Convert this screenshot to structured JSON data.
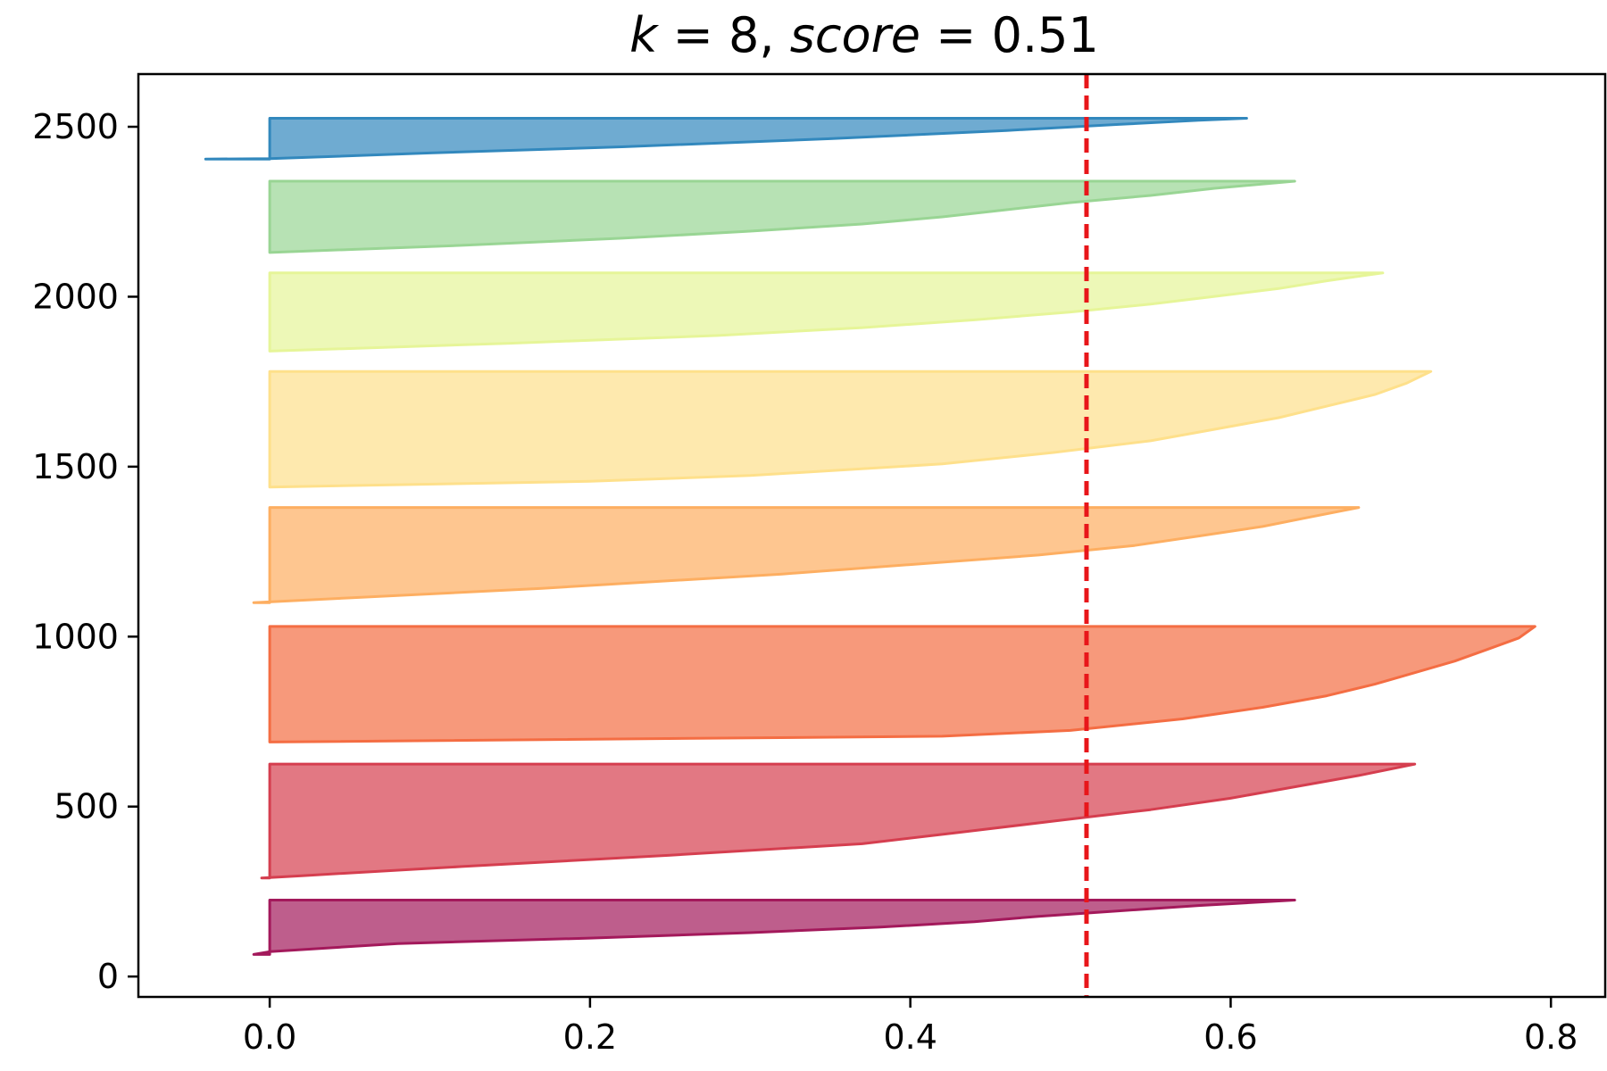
{
  "chart_data": {
    "type": "area",
    "title": {
      "parts": [
        {
          "text": "k",
          "italic": true
        },
        {
          "text": " = 8, ",
          "italic": false
        },
        {
          "text": "score",
          "italic": true
        },
        {
          "text": " = 0.51",
          "italic": false
        }
      ]
    },
    "xlabel": "",
    "ylabel": "",
    "xlim": [
      -0.082,
      0.835
    ],
    "ylim": [
      -60,
      2655
    ],
    "x_ticks": [
      0.0,
      0.2,
      0.4,
      0.6,
      0.8
    ],
    "x_tick_labels": [
      "0.0",
      "0.2",
      "0.4",
      "0.6",
      "0.8"
    ],
    "y_ticks": [
      0,
      500,
      1000,
      1500,
      2000,
      2500
    ],
    "y_tick_labels": [
      "0",
      "500",
      "1000",
      "1500",
      "2000",
      "2500"
    ],
    "grid": false,
    "legend": "none",
    "score_line": {
      "x": 0.51,
      "color": "#e8161a",
      "style": "dashed"
    },
    "clusters": [
      {
        "color": "#a3195b",
        "y_start": 65,
        "y_end": 225,
        "profile": [
          [
            0,
            -0.01
          ],
          [
            0.05,
            0.0
          ],
          [
            0.2,
            0.08
          ],
          [
            0.3,
            0.2
          ],
          [
            0.4,
            0.3
          ],
          [
            0.5,
            0.38
          ],
          [
            0.6,
            0.44
          ],
          [
            0.7,
            0.48
          ],
          [
            0.8,
            0.53
          ],
          [
            0.9,
            0.58
          ],
          [
            1,
            0.64
          ]
        ]
      },
      {
        "color": "#d53e4f",
        "y_start": 290,
        "y_end": 625,
        "profile": [
          [
            0,
            -0.005
          ],
          [
            0.02,
            0.02
          ],
          [
            0.1,
            0.12
          ],
          [
            0.2,
            0.25
          ],
          [
            0.3,
            0.37
          ],
          [
            0.4,
            0.43
          ],
          [
            0.5,
            0.49
          ],
          [
            0.6,
            0.55
          ],
          [
            0.7,
            0.6
          ],
          [
            0.8,
            0.64
          ],
          [
            0.9,
            0.68
          ],
          [
            1,
            0.715
          ]
        ]
      },
      {
        "color": "#f46d43",
        "y_start": 690,
        "y_end": 1030,
        "profile": [
          [
            0,
            0.0
          ],
          [
            0.05,
            0.42
          ],
          [
            0.1,
            0.5
          ],
          [
            0.2,
            0.57
          ],
          [
            0.3,
            0.62
          ],
          [
            0.4,
            0.66
          ],
          [
            0.5,
            0.69
          ],
          [
            0.6,
            0.715
          ],
          [
            0.7,
            0.74
          ],
          [
            0.8,
            0.76
          ],
          [
            0.9,
            0.78
          ],
          [
            1,
            0.79
          ]
        ]
      },
      {
        "color": "#fdae61",
        "y_start": 1100,
        "y_end": 1380,
        "profile": [
          [
            0,
            -0.01
          ],
          [
            0.05,
            0.05
          ],
          [
            0.15,
            0.17
          ],
          [
            0.3,
            0.32
          ],
          [
            0.5,
            0.48
          ],
          [
            0.6,
            0.54
          ],
          [
            0.7,
            0.58
          ],
          [
            0.8,
            0.62
          ],
          [
            0.9,
            0.65
          ],
          [
            1,
            0.68
          ]
        ]
      },
      {
        "color": "#fee08b",
        "y_start": 1440,
        "y_end": 1780,
        "profile": [
          [
            0,
            0.0
          ],
          [
            0.05,
            0.2
          ],
          [
            0.1,
            0.3
          ],
          [
            0.2,
            0.42
          ],
          [
            0.3,
            0.49
          ],
          [
            0.4,
            0.55
          ],
          [
            0.5,
            0.59
          ],
          [
            0.6,
            0.63
          ],
          [
            0.7,
            0.66
          ],
          [
            0.8,
            0.69
          ],
          [
            0.9,
            0.71
          ],
          [
            1,
            0.725
          ]
        ]
      },
      {
        "color": "#e6f598",
        "y_start": 1840,
        "y_end": 2070,
        "profile": [
          [
            0,
            0.0
          ],
          [
            0.1,
            0.15
          ],
          [
            0.2,
            0.28
          ],
          [
            0.3,
            0.37
          ],
          [
            0.4,
            0.44
          ],
          [
            0.5,
            0.5
          ],
          [
            0.6,
            0.55
          ],
          [
            0.7,
            0.59
          ],
          [
            0.8,
            0.63
          ],
          [
            0.9,
            0.66
          ],
          [
            1,
            0.695
          ]
        ]
      },
      {
        "color": "#99d594",
        "y_start": 2130,
        "y_end": 2340,
        "profile": [
          [
            0,
            0.0
          ],
          [
            0.1,
            0.12
          ],
          [
            0.2,
            0.22
          ],
          [
            0.3,
            0.3
          ],
          [
            0.4,
            0.37
          ],
          [
            0.5,
            0.42
          ],
          [
            0.6,
            0.46
          ],
          [
            0.7,
            0.5
          ],
          [
            0.8,
            0.55
          ],
          [
            0.9,
            0.59
          ],
          [
            1,
            0.64
          ]
        ]
      },
      {
        "color": "#3288bd",
        "y_start": 2405,
        "y_end": 2525,
        "profile": [
          [
            0,
            -0.04
          ],
          [
            0.01,
            0.0
          ],
          [
            0.15,
            0.1
          ],
          [
            0.3,
            0.22
          ],
          [
            0.5,
            0.35
          ],
          [
            0.7,
            0.46
          ],
          [
            0.85,
            0.53
          ],
          [
            0.95,
            0.58
          ],
          [
            1,
            0.61
          ]
        ]
      }
    ]
  }
}
